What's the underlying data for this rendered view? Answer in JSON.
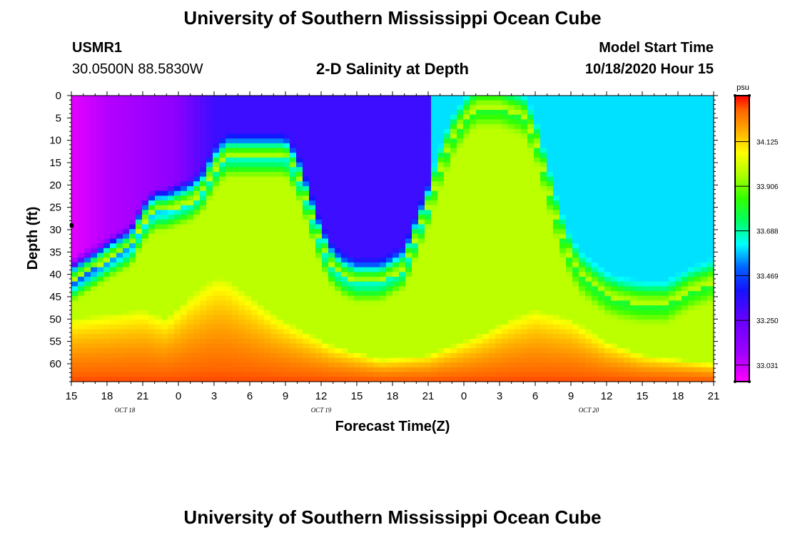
{
  "page": {
    "title_top": "University of Southern Mississippi Ocean Cube",
    "title_bottom": "University of Southern Mississippi Ocean Cube",
    "station_id": "USMR1",
    "station_coords": "30.0500N 88.5830W",
    "plot_title": "2-D Salinity at Depth",
    "model_label": "Model Start Time",
    "model_time": "10/18/2020 Hour 15"
  },
  "colors": {
    "salinity_ramp": [
      "#ff00ff",
      "#b400ff",
      "#8c00ff",
      "#1414ff",
      "#0064ff",
      "#00ffff",
      "#00ff64",
      "#32ff00",
      "#aaff00",
      "#ffff00",
      "#ffaa00",
      "#ff6400",
      "#ff0000"
    ]
  },
  "chart_data": {
    "type": "heatmap",
    "xlabel": "Forecast Time(Z)",
    "ylabel": "Depth (ft)",
    "x_tick_labels": [
      "15",
      "18",
      "21",
      "0",
      "3",
      "6",
      "9",
      "12",
      "15",
      "18",
      "21",
      "0",
      "3",
      "6",
      "9",
      "12",
      "15",
      "18",
      "21"
    ],
    "date_labels": [
      {
        "label": "OCT 18",
        "tick_index": 1.5
      },
      {
        "label": "OCT 19",
        "tick_index": 7
      },
      {
        "label": "OCT 20",
        "tick_index": 14.5
      }
    ],
    "hours_range": [
      0,
      54
    ],
    "depth_ticks": [
      0,
      5,
      10,
      15,
      20,
      25,
      30,
      35,
      40,
      45,
      50,
      55,
      60
    ],
    "ylim": [
      0,
      64
    ],
    "colorbar": {
      "unit": "psu",
      "ticks": [
        "34.125",
        "33.906",
        "33.688",
        "33.469",
        "33.250",
        "33.031"
      ],
      "tick_values": [
        34.125,
        33.906,
        33.688,
        33.469,
        33.25,
        33.031
      ],
      "range": [
        32.95,
        34.35
      ]
    },
    "fresh_layer_bottom_ft": [
      [
        0,
        42
      ],
      [
        3,
        37
      ],
      [
        5,
        34
      ],
      [
        6,
        29
      ],
      [
        7,
        26
      ],
      [
        8,
        26
      ],
      [
        9,
        25
      ],
      [
        10,
        24
      ],
      [
        11,
        22
      ],
      [
        12,
        17
      ],
      [
        13,
        14
      ],
      [
        14,
        14
      ],
      [
        16,
        14
      ],
      [
        18,
        14
      ],
      [
        19,
        18
      ],
      [
        20,
        26
      ],
      [
        21,
        34
      ],
      [
        22,
        39
      ],
      [
        23,
        41
      ],
      [
        24,
        42
      ],
      [
        26,
        42
      ],
      [
        28,
        39
      ],
      [
        29,
        32
      ],
      [
        30,
        25
      ],
      [
        31,
        17
      ],
      [
        32,
        10
      ],
      [
        33,
        6
      ],
      [
        34,
        3
      ],
      [
        36,
        3
      ],
      [
        38,
        5
      ],
      [
        39,
        10
      ],
      [
        40,
        20
      ],
      [
        41,
        30
      ],
      [
        42,
        37
      ],
      [
        43,
        41
      ],
      [
        44,
        43
      ],
      [
        45,
        45
      ],
      [
        46,
        46
      ],
      [
        48,
        47
      ],
      [
        50,
        47
      ],
      [
        52,
        44
      ],
      [
        54,
        42
      ]
    ],
    "halocline_ft": [
      [
        0,
        50
      ],
      [
        3,
        49
      ],
      [
        6,
        48
      ],
      [
        8,
        50
      ],
      [
        10,
        45
      ],
      [
        12,
        41
      ],
      [
        13,
        41
      ],
      [
        15,
        45
      ],
      [
        17,
        49
      ],
      [
        19,
        52
      ],
      [
        22,
        56
      ],
      [
        26,
        59
      ],
      [
        30,
        58
      ],
      [
        34,
        54
      ],
      [
        37,
        50
      ],
      [
        39,
        48
      ],
      [
        42,
        50
      ],
      [
        45,
        55
      ],
      [
        48,
        58
      ],
      [
        51,
        59
      ],
      [
        54,
        60
      ]
    ],
    "salinity_psu": {
      "surface_fresh_start": 33.0,
      "surface_fresh_oct19": 33.35,
      "surface_fresh_oct20": 33.6,
      "mixed_layer": 33.98,
      "bottom": 34.3
    }
  }
}
